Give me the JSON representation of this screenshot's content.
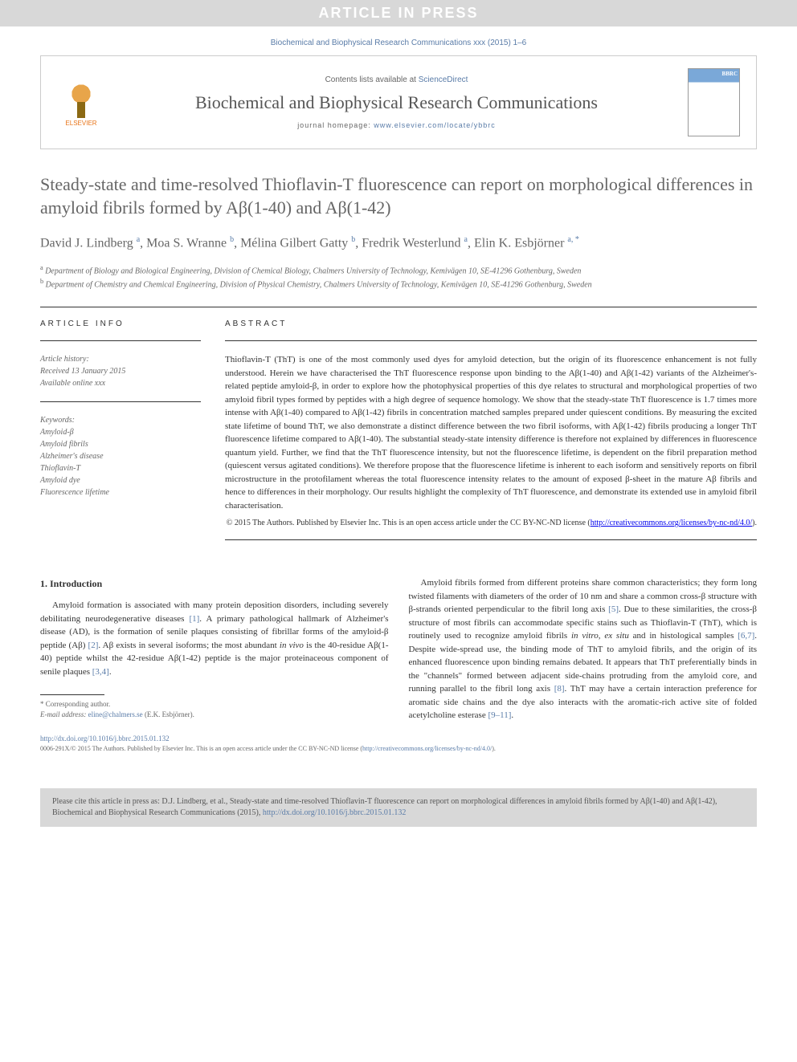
{
  "banner": {
    "text": "ARTICLE IN PRESS"
  },
  "journal_ref": "Biochemical and Biophysical Research Communications xxx (2015) 1–6",
  "header": {
    "contents_prefix": "Contents lists available at ",
    "contents_link": "ScienceDirect",
    "journal_title": "Biochemical and Biophysical Research Communications",
    "homepage_prefix": "journal homepage: ",
    "homepage_url": "www.elsevier.com/locate/ybbrc",
    "publisher": "ELSEVIER"
  },
  "article": {
    "title": "Steady-state and time-resolved Thioflavin-T fluorescence can report on morphological differences in amyloid fibrils formed by Aβ(1-40) and Aβ(1-42)",
    "authors_html": "David J. Lindberg <sup>a</sup>, Moa S. Wranne <sup>b</sup>, Mélina Gilbert Gatty <sup>b</sup>, Fredrik Westerlund <sup>a</sup>, Elin K. Esbjörner <sup>a, *</sup>",
    "affiliations": [
      {
        "sup": "a",
        "text": "Department of Biology and Biological Engineering, Division of Chemical Biology, Chalmers University of Technology, Kemivägen 10, SE-41296 Gothenburg, Sweden"
      },
      {
        "sup": "b",
        "text": "Department of Chemistry and Chemical Engineering, Division of Physical Chemistry, Chalmers University of Technology, Kemivägen 10, SE-41296 Gothenburg, Sweden"
      }
    ]
  },
  "info": {
    "label": "ARTICLE INFO",
    "history_label": "Article history:",
    "received": "Received 13 January 2015",
    "online": "Available online xxx",
    "keywords_label": "Keywords:",
    "keywords": [
      "Amyloid-β",
      "Amyloid fibrils",
      "Alzheimer's disease",
      "Thioflavin-T",
      "Amyloid dye",
      "Fluorescence lifetime"
    ]
  },
  "abstract": {
    "label": "ABSTRACT",
    "text": "Thioflavin-T (ThT) is one of the most commonly used dyes for amyloid detection, but the origin of its fluorescence enhancement is not fully understood. Herein we have characterised the ThT fluorescence response upon binding to the Aβ(1-40) and Aβ(1-42) variants of the Alzheimer's-related peptide amyloid-β, in order to explore how the photophysical properties of this dye relates to structural and morphological properties of two amyloid fibril types formed by peptides with a high degree of sequence homology. We show that the steady-state ThT fluorescence is 1.7 times more intense with Aβ(1-40) compared to Aβ(1-42) fibrils in concentration matched samples prepared under quiescent conditions. By measuring the excited state lifetime of bound ThT, we also demonstrate a distinct difference between the two fibril isoforms, with Aβ(1-42) fibrils producing a longer ThT fluorescence lifetime compared to Aβ(1-40). The substantial steady-state intensity difference is therefore not explained by differences in fluorescence quantum yield. Further, we find that the ThT fluorescence intensity, but not the fluorescence lifetime, is dependent on the fibril preparation method (quiescent versus agitated conditions). We therefore propose that the fluorescence lifetime is inherent to each isoform and sensitively reports on fibril microstructure in the protofilament whereas the total fluorescence intensity relates to the amount of exposed β-sheet in the mature Aβ fibrils and hence to differences in their morphology. Our results highlight the complexity of ThT fluorescence, and demonstrate its extended use in amyloid fibril characterisation.",
    "copyright": "© 2015 The Authors. Published by Elsevier Inc. This is an open access article under the CC BY-NC-ND license (",
    "license_url": "http://creativecommons.org/licenses/by-nc-nd/4.0/",
    "copyright_suffix": ")."
  },
  "body": {
    "section_num": "1.",
    "section_title": "Introduction",
    "col1_para": "Amyloid formation is associated with many protein deposition disorders, including severely debilitating neurodegenerative diseases [1]. A primary pathological hallmark of Alzheimer's disease (AD), is the formation of senile plaques consisting of fibrillar forms of the amyloid-β peptide (Aβ) [2]. Aβ exists in several isoforms; the most abundant in vivo is the 40-residue Aβ(1-40) peptide whilst the 42-residue Aβ(1-42) peptide is the major proteinaceous component of senile plaques [3,4].",
    "col2_para": "Amyloid fibrils formed from different proteins share common characteristics; they form long twisted filaments with diameters of the order of 10 nm and share a common cross-β structure with β-strands oriented perpendicular to the fibril long axis [5]. Due to these similarities, the cross-β structure of most fibrils can accommodate specific stains such as Thioflavin-T (ThT), which is routinely used to recognize amyloid fibrils in vitro, ex situ and in histological samples [6,7]. Despite wide-spread use, the binding mode of ThT to amyloid fibrils, and the origin of its enhanced fluorescence upon binding remains debated. It appears that ThT preferentially binds in the \"channels\" formed between adjacent side-chains protruding from the amyloid core, and running parallel to the fibril long axis [8]. ThT may have a certain interaction preference for aromatic side chains and the dye also interacts with the aromatic-rich active site of folded acetylcholine esterase [9–11]."
  },
  "footnote": {
    "corresponding": "* Corresponding author.",
    "email_label": "E-mail address: ",
    "email": "eline@chalmers.se",
    "email_name": " (E.K. Esbjörner)."
  },
  "doi": {
    "url": "http://dx.doi.org/10.1016/j.bbrc.2015.01.132",
    "issn_line": "0006-291X/© 2015 The Authors. Published by Elsevier Inc. This is an open access article under the CC BY-NC-ND license (",
    "license_url": "http://creativecommons.org/licenses/by-nc-nd/4.0/",
    "suffix": ")."
  },
  "citation_box": {
    "prefix": "Please cite this article in press as: D.J. Lindberg, et al., Steady-state and time-resolved Thioflavin-T fluorescence can report on morphological differences in amyloid fibrils formed by Aβ(1-40) and Aβ(1-42), Biochemical and Biophysical Research Communications (2015), ",
    "url": "http://dx.doi.org/10.1016/j.bbrc.2015.01.132"
  },
  "colors": {
    "link": "#5a7ca8",
    "banner_bg": "#d8d8d8",
    "text": "#333333",
    "muted": "#666666"
  }
}
